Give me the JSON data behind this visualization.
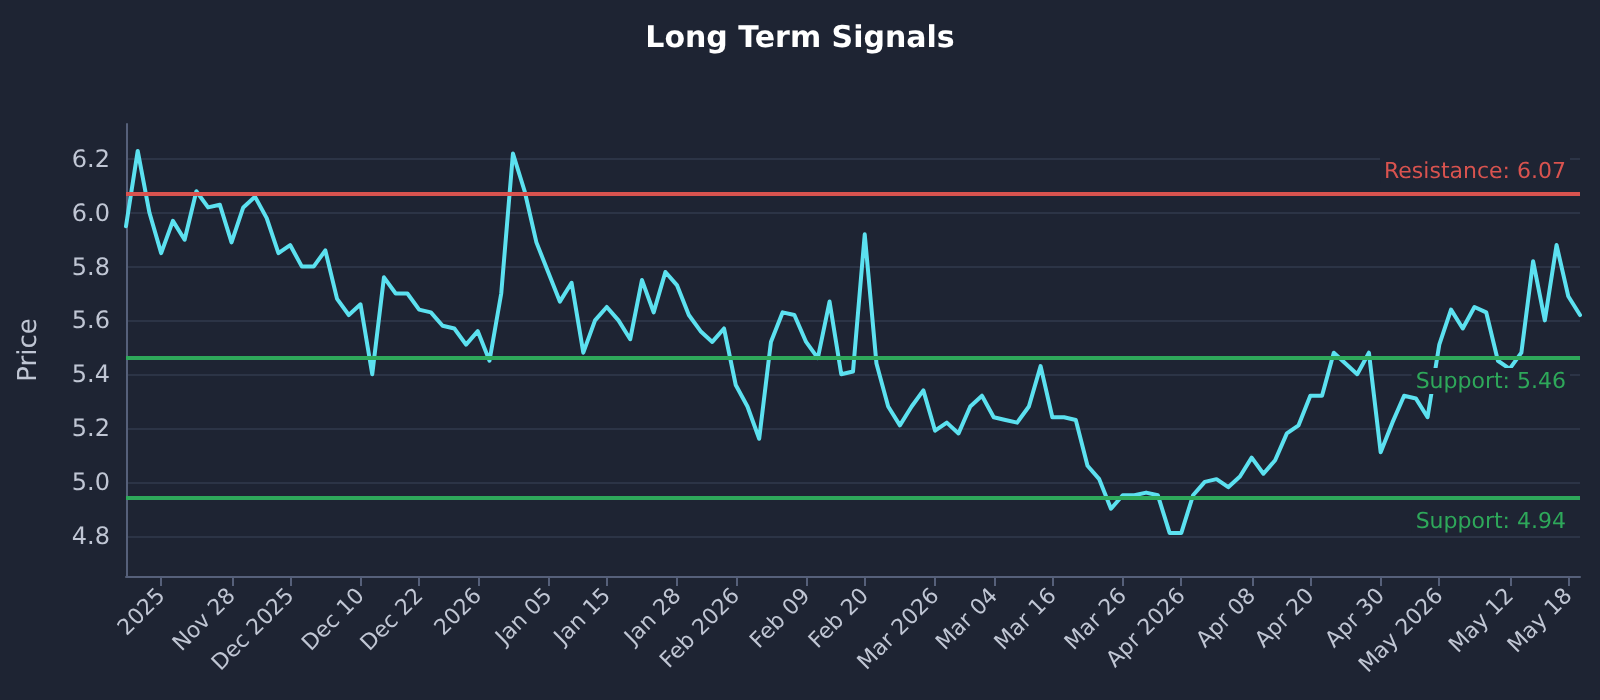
{
  "chart_data": {
    "type": "line",
    "title": "Long Term Signals",
    "ylabel": "Price",
    "categories": [
      null,
      null,
      null,
      "2025",
      null,
      null,
      null,
      null,
      null,
      "Nov 28",
      null,
      null,
      null,
      null,
      "Dec 2025",
      null,
      null,
      null,
      null,
      null,
      "Dec 10",
      null,
      null,
      null,
      null,
      "Dec 22",
      null,
      null,
      null,
      null,
      "2026",
      null,
      null,
      null,
      null,
      null,
      "Jan 05",
      null,
      null,
      null,
      null,
      "Jan 15",
      null,
      null,
      null,
      null,
      null,
      "Jan 28",
      null,
      null,
      null,
      null,
      "Feb 2026",
      null,
      null,
      null,
      null,
      null,
      "Feb 09",
      null,
      null,
      null,
      null,
      "Feb 20",
      null,
      null,
      null,
      null,
      null,
      "Mar 2026",
      null,
      null,
      null,
      null,
      "Mar 04",
      null,
      null,
      null,
      null,
      "Mar 16",
      null,
      null,
      null,
      null,
      null,
      "Mar 26",
      null,
      null,
      null,
      null,
      "Apr 2026",
      null,
      null,
      null,
      null,
      null,
      "Apr 08",
      null,
      null,
      null,
      null,
      "Apr 20",
      null,
      null,
      null,
      null,
      null,
      "Apr 30",
      null,
      null,
      null,
      null,
      "May 2026",
      null,
      null,
      null,
      null,
      null,
      "May 12",
      null,
      null,
      null,
      null,
      "May 18",
      null
    ],
    "series": [
      {
        "color": "#5ce1f0",
        "values": [
          5.95,
          6.23,
          6.0,
          5.85,
          5.97,
          5.9,
          6.08,
          6.02,
          6.03,
          5.89,
          6.02,
          6.06,
          5.98,
          5.85,
          5.88,
          5.8,
          5.8,
          5.86,
          5.68,
          5.62,
          5.66,
          5.4,
          5.76,
          5.7,
          5.7,
          5.64,
          5.63,
          5.58,
          5.57,
          5.51,
          5.56,
          5.45,
          5.7,
          6.22,
          6.08,
          5.89,
          5.78,
          5.67,
          5.74,
          5.48,
          5.6,
          5.65,
          5.6,
          5.53,
          5.75,
          5.63,
          5.78,
          5.73,
          5.62,
          5.56,
          5.52,
          5.57,
          5.36,
          5.28,
          5.16,
          5.52,
          5.63,
          5.62,
          5.52,
          5.46,
          5.67,
          5.4,
          5.41,
          5.92,
          5.44,
          5.28,
          5.21,
          5.28,
          5.34,
          5.19,
          5.22,
          5.18,
          5.28,
          5.32,
          5.24,
          5.23,
          5.22,
          5.28,
          5.43,
          5.24,
          5.24,
          5.23,
          5.06,
          5.01,
          4.9,
          4.95,
          4.95,
          4.96,
          4.95,
          4.81,
          4.81,
          4.95,
          5.0,
          5.01,
          4.98,
          5.02,
          5.09,
          5.03,
          5.08,
          5.18,
          5.21,
          5.32,
          5.32,
          5.48,
          5.44,
          5.4,
          5.48,
          5.11,
          5.22,
          5.32,
          5.31,
          5.24,
          5.51,
          5.64,
          5.57,
          5.65,
          5.63,
          5.45,
          5.42,
          5.48,
          5.82,
          5.6,
          5.88,
          5.69,
          5.62
        ]
      }
    ],
    "ylim": [
      4.65,
      6.33
    ],
    "yticks": [
      4.8,
      {
        "value": 5,
        "label": "5.0"
      },
      5.2,
      5.4,
      5.6,
      5.8,
      {
        "value": 6,
        "label": "6.0"
      },
      6.2
    ],
    "ref_lines": [
      {
        "axis": "y",
        "value": 6.07,
        "label": "Resistance: 6.07",
        "color": "#d9534f"
      },
      {
        "axis": "y",
        "value": 5.46,
        "label": "Support: 5.46",
        "color": "#2ea85a"
      },
      {
        "axis": "y",
        "value": 4.94,
        "label": "Support: 4.94",
        "color": "#2ea85a"
      }
    ],
    "grid": "y",
    "marker": "none",
    "line_style": "solid"
  }
}
